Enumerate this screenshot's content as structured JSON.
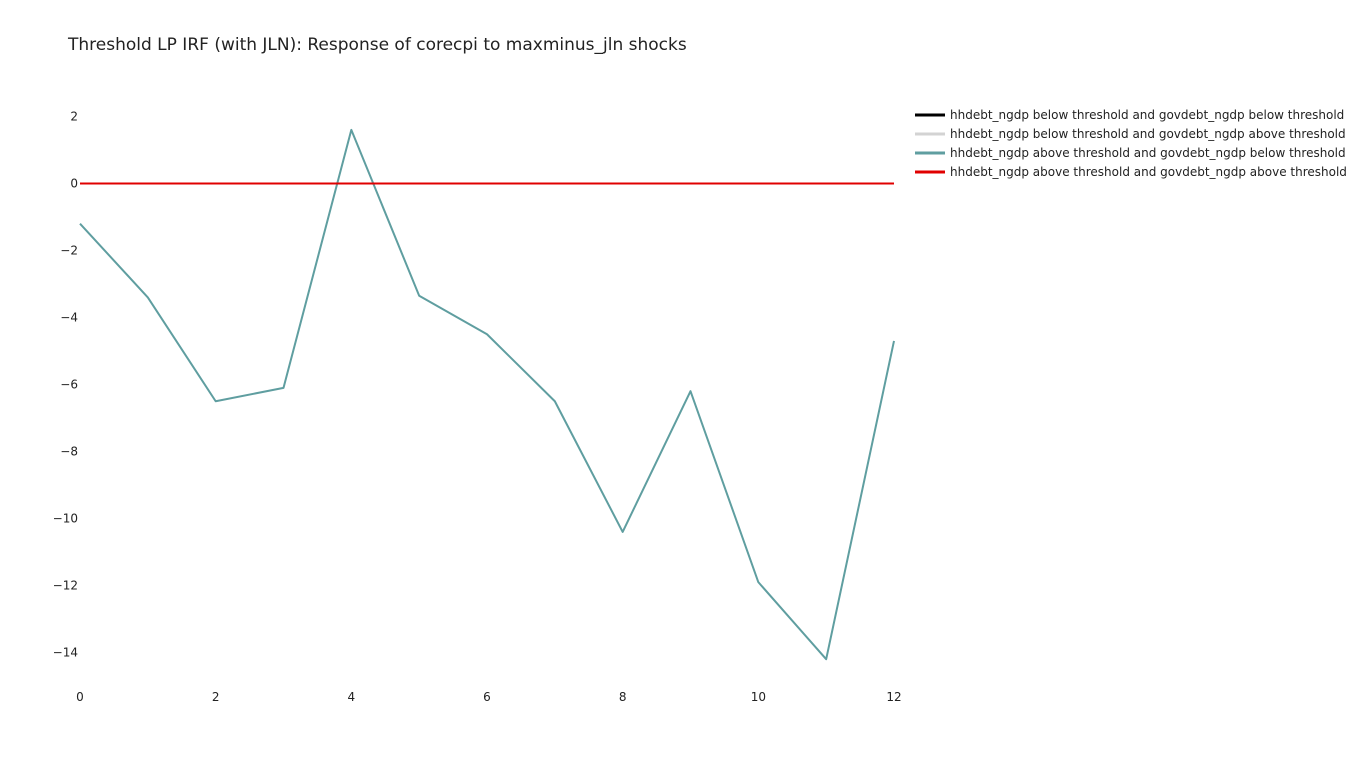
{
  "chart_data": {
    "type": "line",
    "title": "Threshold LP IRF (with JLN): Response of corecpi to maxminus_jln shocks",
    "xlabel": "",
    "ylabel": "",
    "x": [
      0,
      1,
      2,
      3,
      4,
      5,
      6,
      7,
      8,
      9,
      10,
      11,
      12
    ],
    "xlim": [
      0,
      12
    ],
    "ylim": [
      -15,
      3
    ],
    "x_ticks": [
      0,
      2,
      4,
      6,
      8,
      10,
      12
    ],
    "y_ticks": [
      2,
      0,
      -2,
      -4,
      -6,
      -8,
      -10,
      -12,
      -14
    ],
    "x_tick_labels": [
      "0",
      "2",
      "4",
      "6",
      "8",
      "10",
      "12"
    ],
    "y_tick_labels": [
      "2",
      "0",
      "−2",
      "−4",
      "−6",
      "−8",
      "−10",
      "−12",
      "−14"
    ],
    "grid": false,
    "legend_position": "top-right",
    "series": [
      {
        "name": "hhdebt_ngdp below threshold and govdebt_ngdp below threshold",
        "color": "#000000",
        "values": [
          0,
          0,
          0,
          0,
          0,
          0,
          0,
          0,
          0,
          0,
          0,
          0,
          0
        ]
      },
      {
        "name": "hhdebt_ngdp below threshold and govdebt_ngdp above threshold",
        "color": "#d3d3d3",
        "values": [
          0,
          0,
          0,
          0,
          0,
          0,
          0,
          0,
          0,
          0,
          0,
          0,
          0
        ]
      },
      {
        "name": "hhdebt_ngdp above threshold and govdebt_ngdp below threshold",
        "color": "#5f9ea0",
        "values": [
          -1.2,
          -3.4,
          -6.5,
          -6.1,
          1.6,
          -3.35,
          -4.5,
          -6.5,
          -10.4,
          -6.2,
          -11.9,
          -14.2,
          -4.7
        ]
      },
      {
        "name": "hhdebt_ngdp above threshold and govdebt_ngdp above threshold",
        "color": "#e00000",
        "values": [
          0,
          0,
          0,
          0,
          0,
          0,
          0,
          0,
          0,
          0,
          0,
          0,
          0
        ]
      }
    ]
  }
}
